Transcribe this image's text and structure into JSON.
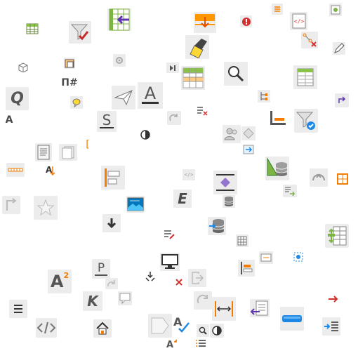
{
  "page": {
    "title": ""
  },
  "glyphs": {
    "q": "Q",
    "a_small": "A",
    "a_large": "A",
    "s": "S",
    "e": "E",
    "a2_a": "A",
    "a2_sup": "2",
    "p": "P",
    "k": "K",
    "pi_sym": "Π#",
    "bracket": "[",
    "tooltip_text": "..."
  },
  "colors": {
    "icon_gray": "#4a4a4a",
    "accent_green": "#7cb342",
    "accent_orange": "#f57c00",
    "accent_blue": "#1e88e5",
    "accent_red": "#d32f2f",
    "accent_purple": "#7e57c2",
    "accent_yellow": "#fdd835"
  },
  "icons": [
    "table-icon",
    "filter-check-icon",
    "table-insert-left-icon",
    "insert-row-orange-icon",
    "error-shield-icon",
    "list-orange-icon",
    "html-tag-icon",
    "form-checkbox-icon",
    "3d-box-icon",
    "highlighter-icon",
    "link-delete-icon",
    "pencil-edit-icon",
    "clipboard-paste-icon",
    "gear-icon",
    "media-skip-icon",
    "table-green-header-icon",
    "zoom-icon",
    "table-side-icon",
    "q-italic-icon",
    "pi-hash-icon",
    "paper-plane-icon",
    "underline-a-icon",
    "tree-icon",
    "redo-icon",
    "comment-balloon-icon",
    "strikethrough-s-icon",
    "contrast-icon",
    "redo-gray-icon",
    "delete-list-icon",
    "users-icon",
    "shape-diamond-icon",
    "filter-blue-icon",
    "page-form-icon",
    "copy-pages-icon",
    "bracket-icon",
    "arrow-right-box-icon",
    "bar-chart-icon",
    "measure-tool-icon",
    "text-direction-icon",
    "html-small-icon",
    "align-purple-icon",
    "chart-green-icon",
    "database-icon",
    "frame-orange-icon",
    "export-green-icon",
    "undo-gray-icon",
    "undo-arrow-icon",
    "star-icon",
    "image-blue-icon",
    "e-italic-icon",
    "database-small-icon",
    "arrow-down-icon",
    "list-edit-icon",
    "database-stack-icon",
    "grid-icon",
    "spreadsheet-green-icon",
    "align-block-icon",
    "monitor-icon",
    "points-icon",
    "a-superscript-icon",
    "p-icon",
    "redo-light-icon",
    "exit-icon",
    "bullet-arrows-icon",
    "close-red-icon",
    "k-italic-icon",
    "comment-icon",
    "redo-circle-icon",
    "fit-width-icon",
    "hamburger-icon",
    "code-icon",
    "home-icon",
    "tag-shape-icon",
    "spell-check-icon",
    "zoom-small-icon",
    "contrast-small-icon",
    "list-import-icon",
    "progress-bar-icon",
    "arrow-red-icon",
    "indent-list-icon",
    "a-color-icon",
    "list-number-icon"
  ]
}
